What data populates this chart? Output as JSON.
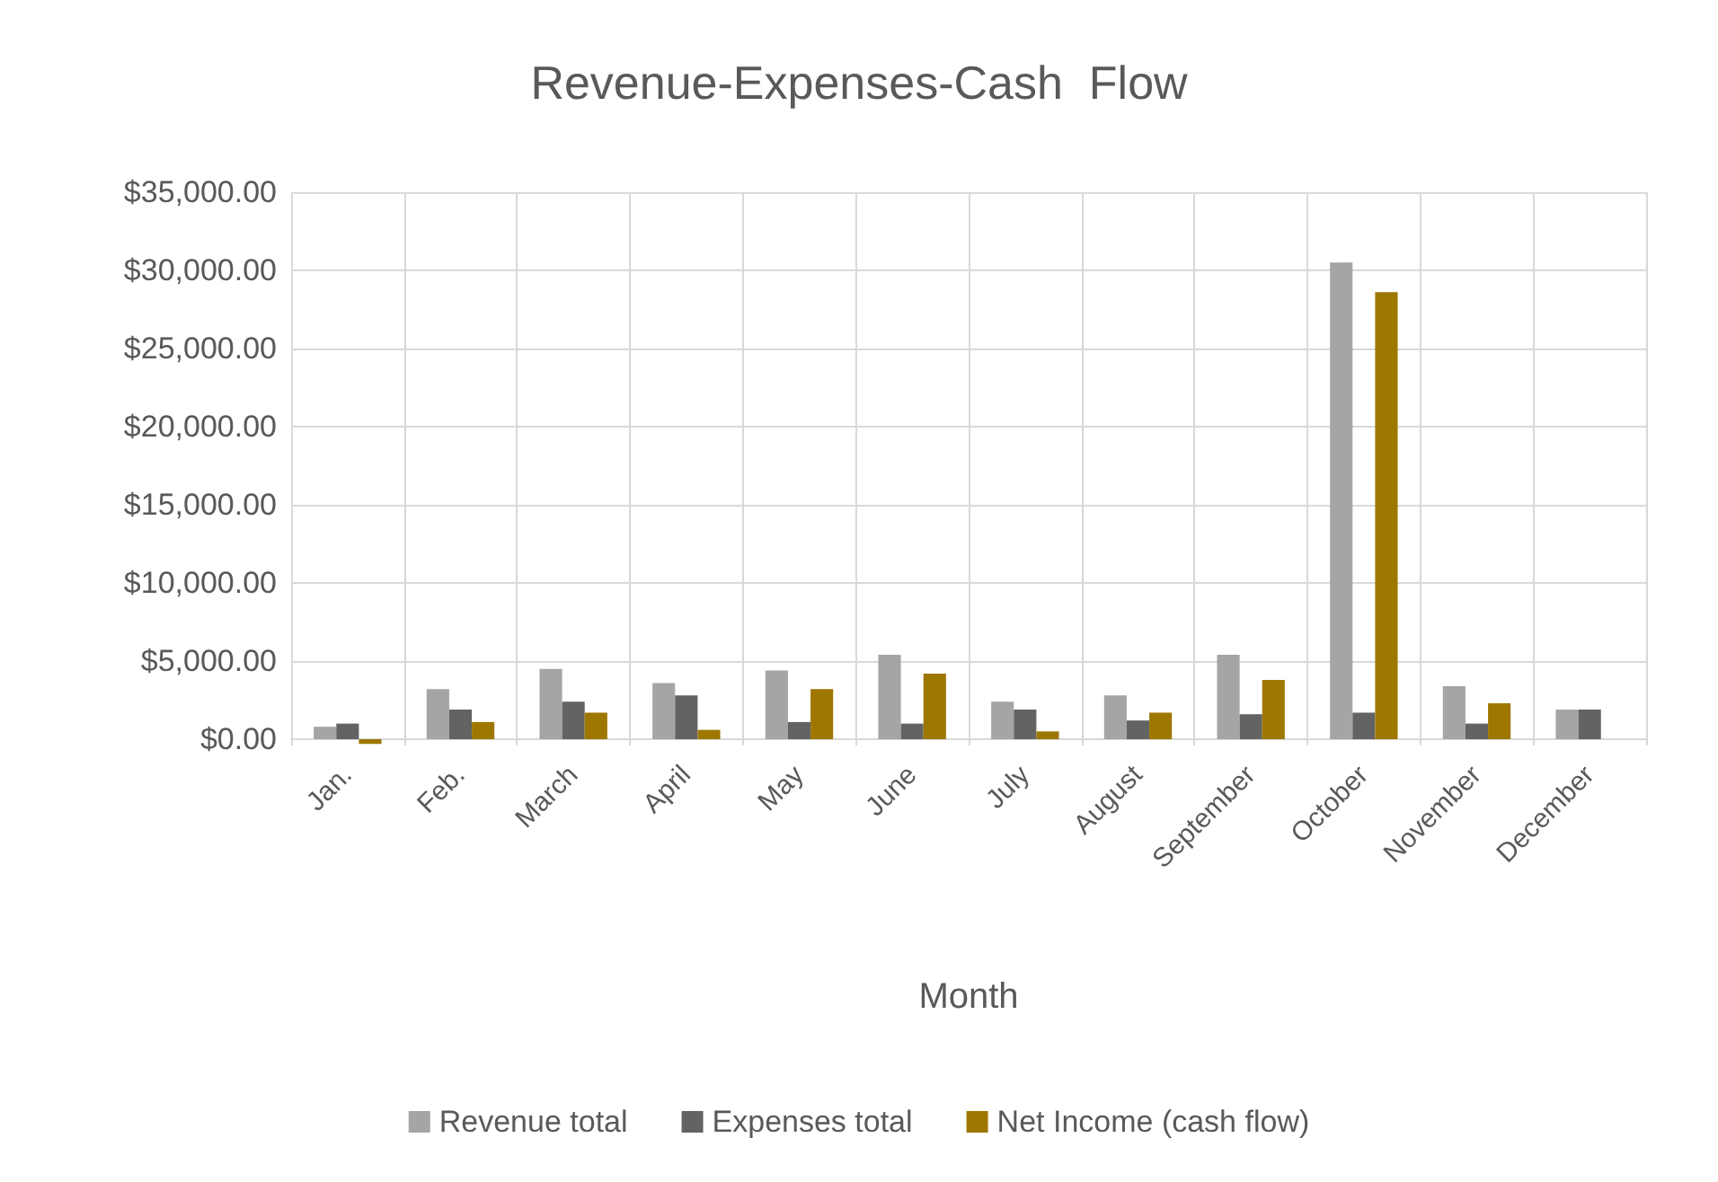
{
  "chart_data": {
    "type": "bar",
    "title": "Revenue-Expenses-Cash  Flow",
    "xlabel": "Month",
    "categories": [
      "Jan.",
      "Feb.",
      "March",
      "April",
      "May",
      "June",
      "July",
      "August",
      "September",
      "October",
      "November",
      "December"
    ],
    "series": [
      {
        "name": "Revenue total",
        "color": "#a5a5a5",
        "values": [
          800,
          3200,
          4500,
          3600,
          4400,
          5400,
          2400,
          2800,
          5400,
          30500,
          3400,
          1900
        ]
      },
      {
        "name": "Expenses total",
        "color": "#636363",
        "values": [
          1000,
          1900,
          2400,
          2800,
          1100,
          1000,
          1900,
          1200,
          1600,
          1700,
          1000,
          1900
        ]
      },
      {
        "name": "Net Income (cash flow)",
        "color": "#9e7700",
        "values": [
          -300,
          1100,
          1700,
          600,
          3200,
          4200,
          500,
          1700,
          3800,
          28600,
          2300,
          0
        ]
      }
    ],
    "ylim": [
      -400,
      35000
    ],
    "yticks": [
      {
        "value": 0,
        "label": "$0.00"
      },
      {
        "value": 5000,
        "label": "$5,000.00"
      },
      {
        "value": 10000,
        "label": "$10,000.00"
      },
      {
        "value": 15000,
        "label": "$15,000.00"
      },
      {
        "value": 20000,
        "label": "$20,000.00"
      },
      {
        "value": 25000,
        "label": "$25,000.00"
      },
      {
        "value": 30000,
        "label": "$30,000.00"
      },
      {
        "value": 35000,
        "label": "$35,000.00"
      }
    ],
    "grid": true,
    "legend": "bottom"
  }
}
